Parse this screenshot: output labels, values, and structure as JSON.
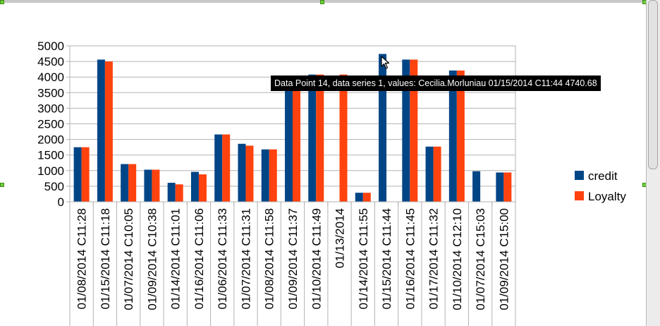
{
  "chart_data": {
    "type": "bar",
    "categories": [
      "01/08/2014 C11:28",
      "01/15/2014 C11:18",
      "01/07/2014 C10:05",
      "01/09/2014 C10:38",
      "01/14/2014 C11:01",
      "01/16/2014 C11:06",
      "01/06/2014 C11:33",
      "01/07/2014 C11:31",
      "01/08/2014 C11:58",
      "01/09/2014 C11:37",
      "01/10/2014 C11:49",
      "01/13/2014",
      "01/14/2014 C11:55",
      "01/15/2014 C11:44",
      "01/16/2014 C11:45",
      "01/17/2014 C11:32",
      "01/10/2014 C12:10",
      "01/07/2014 C15:03",
      "01/09/2014 C15:00"
    ],
    "series": [
      {
        "name": "credit",
        "color": "#004586",
        "values": [
          1750,
          4560,
          1210,
          1030,
          610,
          960,
          2160,
          1860,
          1680,
          4040,
          4080,
          0,
          290,
          4740.68,
          4560,
          1770,
          4210,
          980,
          940
        ]
      },
      {
        "name": "Loyalty",
        "color": "#ff420e",
        "values": [
          1750,
          4500,
          1210,
          1030,
          560,
          880,
          2160,
          1800,
          1680,
          4040,
          4080,
          4080,
          290,
          0,
          4560,
          1770,
          4210,
          0,
          940
        ]
      }
    ],
    "ylim": [
      0,
      5000
    ],
    "yticks": [
      "0",
      "500",
      "1000",
      "1500",
      "2000",
      "2500",
      "3000",
      "3500",
      "4000",
      "4500",
      "5000"
    ],
    "grid": true,
    "legend": "right"
  },
  "tooltip": {
    "text": "Data Point 14, data series 1, values: Cecilia.Morluniau 01/15/2014 C11:44 4740.68"
  }
}
